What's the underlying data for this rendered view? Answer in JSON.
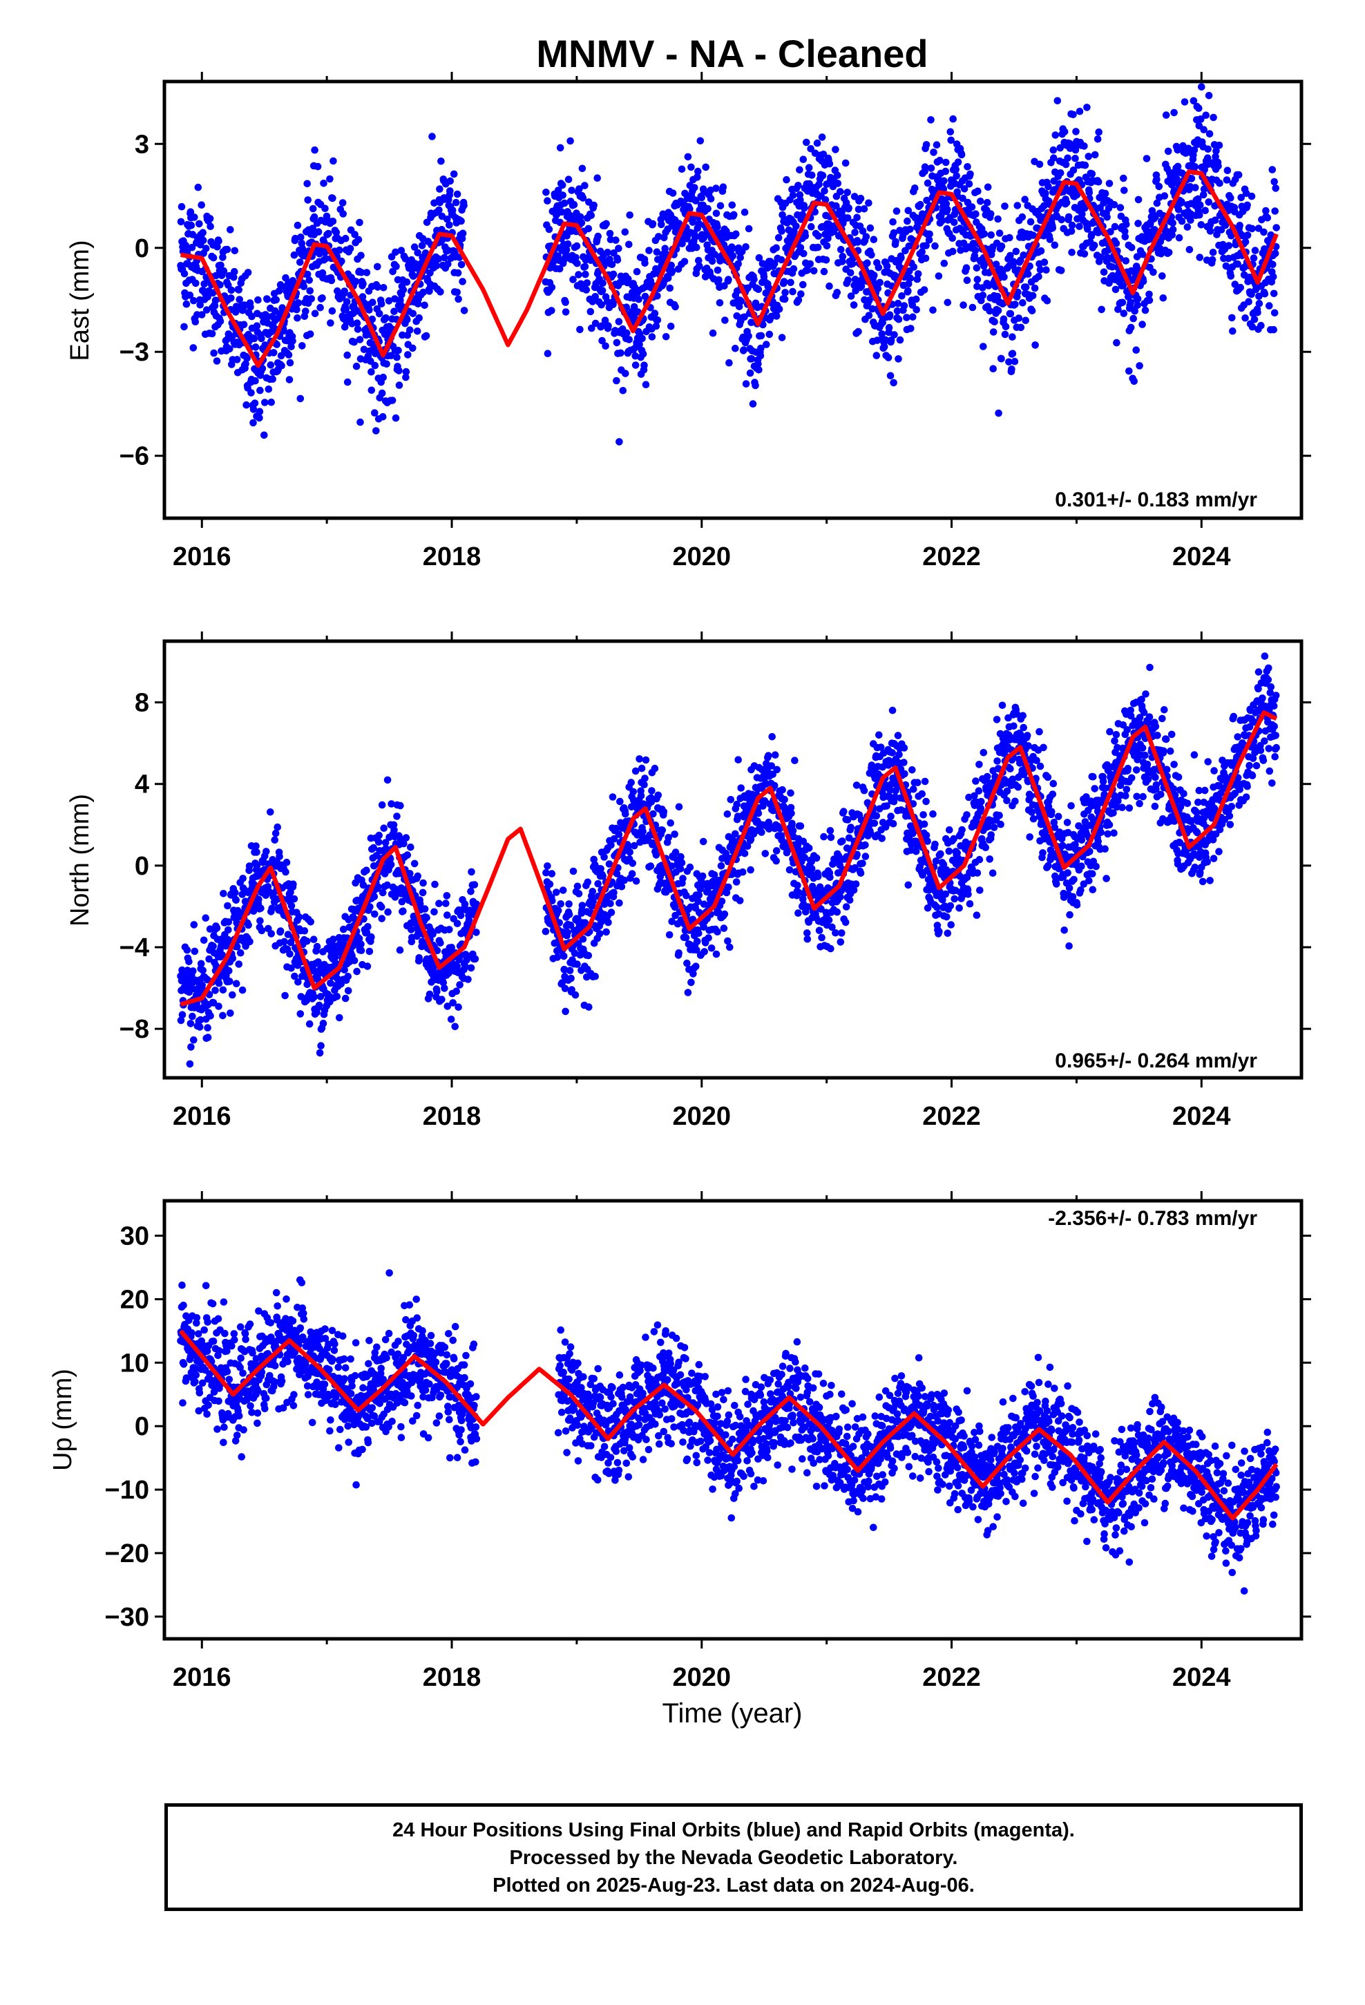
{
  "chart_data": [
    {
      "type": "scatter",
      "title": "MNMV  - NA - Cleaned",
      "ylabel": "East (mm)",
      "xlabel": "",
      "ylim": [
        -7.8,
        4.8
      ],
      "xlim": [
        2015.7,
        2024.8
      ],
      "yticks": [
        3,
        0,
        -3,
        -6
      ],
      "xticks": [
        2016,
        2018,
        2020,
        2022,
        2024
      ],
      "rate_label": "0.301+/- 0.183 mm/yr",
      "data_gap": [
        2018.1,
        2018.75
      ],
      "series": [
        {
          "type": "scatter",
          "color": "#0000ff",
          "data_range": [
            2015.83,
            2024.6
          ],
          "scatter_sd": 1.0
        },
        {
          "type": "line",
          "color": "#ff0000",
          "x": [
            2015.83,
            2016.0,
            2016.2,
            2016.45,
            2016.6,
            2016.9,
            2017.0,
            2017.25,
            2017.45,
            2017.6,
            2017.9,
            2018.0,
            2018.25,
            2018.45,
            2018.6,
            2018.9,
            2019.0,
            2019.25,
            2019.45,
            2019.6,
            2019.9,
            2020.0,
            2020.25,
            2020.45,
            2020.6,
            2020.9,
            2021.0,
            2021.25,
            2021.45,
            2021.6,
            2021.9,
            2022.0,
            2022.25,
            2022.45,
            2022.6,
            2022.9,
            2023.0,
            2023.25,
            2023.45,
            2023.6,
            2023.9,
            2024.0,
            2024.25,
            2024.45,
            2024.6
          ],
          "y": [
            -0.2,
            -0.3,
            -1.8,
            -3.4,
            -2.5,
            0.1,
            0.05,
            -1.5,
            -3.1,
            -2.0,
            0.4,
            0.35,
            -1.2,
            -2.8,
            -1.8,
            0.7,
            0.65,
            -0.9,
            -2.4,
            -1.4,
            1.0,
            0.95,
            -0.6,
            -2.2,
            -1.0,
            1.3,
            1.25,
            -0.3,
            -1.9,
            -0.8,
            1.6,
            1.55,
            0.0,
            -1.6,
            -0.4,
            1.9,
            1.85,
            0.3,
            -1.3,
            0.0,
            2.2,
            2.15,
            0.6,
            -1.0,
            0.4
          ]
        }
      ]
    },
    {
      "type": "scatter",
      "ylabel": "North (mm)",
      "xlabel": "",
      "ylim": [
        -10.4,
        11.0
      ],
      "xlim": [
        2015.7,
        2024.8
      ],
      "yticks": [
        8,
        4,
        0,
        -4,
        -8
      ],
      "xticks": [
        2016,
        2018,
        2020,
        2022,
        2024
      ],
      "rate_label": "0.965+/- 0.264 mm/yr",
      "data_gap": [
        2018.2,
        2018.75
      ],
      "series": [
        {
          "type": "scatter",
          "color": "#0000ff",
          "data_range": [
            2015.83,
            2024.6
          ],
          "scatter_sd": 1.3
        },
        {
          "type": "line",
          "color": "#ff0000",
          "x": [
            2015.83,
            2016.0,
            2016.2,
            2016.45,
            2016.55,
            2016.75,
            2016.9,
            2017.1,
            2017.3,
            2017.45,
            2017.55,
            2017.75,
            2017.9,
            2018.1,
            2018.3,
            2018.45,
            2018.55,
            2018.75,
            2018.9,
            2019.1,
            2019.3,
            2019.45,
            2019.55,
            2019.75,
            2019.9,
            2020.1,
            2020.3,
            2020.45,
            2020.55,
            2020.75,
            2020.9,
            2021.1,
            2021.3,
            2021.45,
            2021.55,
            2021.75,
            2021.9,
            2022.1,
            2022.3,
            2022.45,
            2022.55,
            2022.75,
            2022.9,
            2023.1,
            2023.3,
            2023.45,
            2023.55,
            2023.75,
            2023.9,
            2024.1,
            2024.3,
            2024.5,
            2024.6
          ],
          "y": [
            -6.8,
            -6.5,
            -4.5,
            -1.0,
            -0.1,
            -3.5,
            -6.0,
            -5.0,
            -2.0,
            0.3,
            0.9,
            -2.8,
            -5.0,
            -4.0,
            -1.0,
            1.3,
            1.8,
            -1.5,
            -4.1,
            -3.0,
            0.0,
            2.3,
            2.8,
            -0.6,
            -3.1,
            -2.0,
            1.0,
            3.3,
            3.8,
            0.4,
            -2.1,
            -1.0,
            2.0,
            4.3,
            4.8,
            1.4,
            -1.1,
            0.0,
            3.0,
            5.3,
            5.8,
            2.4,
            -0.1,
            1.0,
            4.0,
            6.3,
            6.8,
            3.4,
            0.9,
            2.0,
            5.0,
            7.5,
            7.2
          ]
        }
      ]
    },
    {
      "type": "scatter",
      "ylabel": "Up (mm)",
      "xlabel": "Time (year)",
      "ylim": [
        -33.5,
        35.5
      ],
      "xlim": [
        2015.7,
        2024.8
      ],
      "yticks": [
        30,
        20,
        10,
        0,
        -10,
        -20,
        -30
      ],
      "xticks": [
        2016,
        2018,
        2020,
        2022,
        2024
      ],
      "rate_label": "-2.356+/- 0.783 mm/yr",
      "data_gap": [
        2018.2,
        2018.85
      ],
      "series": [
        {
          "type": "scatter",
          "color": "#0000ff",
          "data_range": [
            2015.83,
            2024.6
          ],
          "scatter_sd": 4.0
        },
        {
          "type": "line",
          "color": "#ff0000",
          "x": [
            2015.83,
            2016.0,
            2016.25,
            2016.45,
            2016.7,
            2016.95,
            2017.25,
            2017.45,
            2017.7,
            2017.95,
            2018.25,
            2018.45,
            2018.7,
            2018.95,
            2019.25,
            2019.45,
            2019.7,
            2019.95,
            2020.25,
            2020.45,
            2020.7,
            2020.95,
            2021.25,
            2021.45,
            2021.7,
            2021.95,
            2022.25,
            2022.45,
            2022.7,
            2022.95,
            2023.25,
            2023.45,
            2023.7,
            2023.95,
            2024.25,
            2024.45,
            2024.6
          ],
          "y": [
            15,
            11,
            5,
            9,
            13.5,
            9,
            2.5,
            6,
            11,
            7,
            0.3,
            4.5,
            9,
            5,
            -2,
            2.5,
            6.5,
            2.5,
            -4.5,
            0,
            4.5,
            0,
            -7,
            -2.5,
            2,
            -2.5,
            -9.5,
            -5,
            -0.5,
            -4.5,
            -12,
            -7.5,
            -2.5,
            -7,
            -14.5,
            -10,
            -6
          ]
        }
      ]
    }
  ],
  "footer": {
    "line1": "24 Hour Positions Using Final Orbits (blue) and Rapid Orbits (magenta).",
    "line2": "Processed by the Nevada Geodetic Laboratory.",
    "line3": "Plotted on 2025-Aug-23. Last data on 2024-Aug-06."
  }
}
